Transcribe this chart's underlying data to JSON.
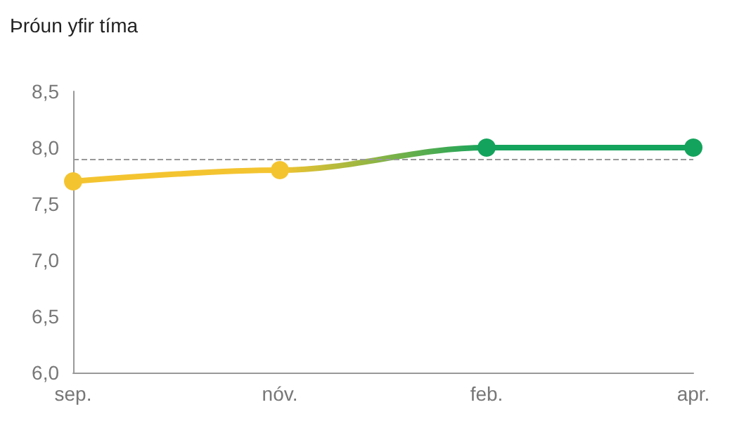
{
  "chart_data": {
    "type": "line",
    "title": "Þróun yfir tíma",
    "categories": [
      "sep.",
      "nóv.",
      "feb.",
      "apr."
    ],
    "series": [
      {
        "values": [
          7.7,
          7.8,
          8.0,
          8.0
        ],
        "colors": [
          "#f4c430",
          "#f4c430",
          "#14a35c",
          "#14a35c"
        ]
      }
    ],
    "ylim": [
      6.0,
      8.5
    ],
    "yticks": [
      {
        "value": 6,
        "label": "6,0"
      },
      {
        "value": 6.5,
        "label": "6,5"
      },
      {
        "value": 7,
        "label": "7,0"
      },
      {
        "value": 7.5,
        "label": "7,5"
      },
      {
        "value": 8,
        "label": "8,0"
      },
      {
        "value": 8.5,
        "label": "8,5"
      }
    ],
    "ref_lines": [
      {
        "axis": "y",
        "value": 7.9,
        "color": "#999999",
        "line_style": "dashed"
      }
    ],
    "grid": false,
    "marker": "circle",
    "line_style": "solid"
  }
}
